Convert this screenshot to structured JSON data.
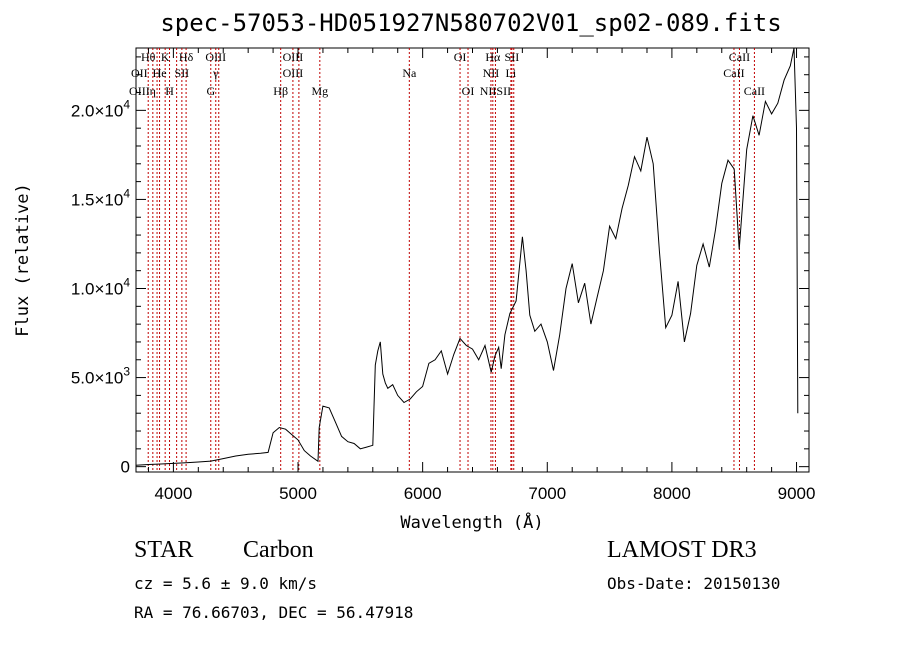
{
  "chart_data": {
    "type": "line",
    "title": "spec-57053-HD051927N580702V01_sp02-089.fits",
    "xlabel": "Wavelength (Å)",
    "ylabel": "Flux (relative)",
    "xlim": [
      3700,
      9100
    ],
    "ylim": [
      -300,
      23500
    ],
    "x_ticks": [
      4000,
      5000,
      6000,
      7000,
      8000,
      9000
    ],
    "x_tick_labels": [
      "4000",
      "5000",
      "6000",
      "7000",
      "8000",
      "9000"
    ],
    "y_ticks": [
      0,
      5000,
      10000,
      15000,
      20000
    ],
    "y_tick_labels": [
      {
        "mant": "0",
        "exp": ""
      },
      {
        "mant": "5.0×10",
        "exp": "3"
      },
      {
        "mant": "1.0×10",
        "exp": "4"
      },
      {
        "mant": "1.5×10",
        "exp": "4"
      },
      {
        "mant": "2.0×10",
        "exp": "4"
      }
    ],
    "spectrum": {
      "wavelength": [
        3700,
        3800,
        3900,
        4000,
        4100,
        4200,
        4300,
        4400,
        4500,
        4600,
        4700,
        4760,
        4800,
        4850,
        4900,
        4950,
        5000,
        5050,
        5100,
        5160,
        5170,
        5200,
        5250,
        5300,
        5350,
        5400,
        5450,
        5500,
        5550,
        5600,
        5620,
        5640,
        5660,
        5680,
        5700,
        5720,
        5760,
        5800,
        5850,
        5900,
        5950,
        6000,
        6050,
        6100,
        6150,
        6200,
        6250,
        6300,
        6350,
        6400,
        6450,
        6500,
        6550,
        6580,
        6610,
        6630,
        6660,
        6700,
        6750,
        6800,
        6830,
        6860,
        6900,
        6950,
        7000,
        7050,
        7100,
        7150,
        7200,
        7250,
        7300,
        7350,
        7400,
        7450,
        7500,
        7550,
        7600,
        7650,
        7700,
        7750,
        7800,
        7850,
        7880,
        7900,
        7950,
        8000,
        8050,
        8100,
        8150,
        8200,
        8250,
        8300,
        8350,
        8400,
        8450,
        8500,
        8540,
        8600,
        8650,
        8700,
        8750,
        8800,
        8850,
        8900,
        8950,
        8980,
        9000,
        9010
      ],
      "flux": [
        80,
        120,
        150,
        180,
        220,
        260,
        310,
        450,
        600,
        700,
        750,
        800,
        1900,
        2200,
        2100,
        1800,
        1500,
        900,
        600,
        300,
        2200,
        3400,
        3300,
        2500,
        1700,
        1400,
        1300,
        1000,
        1100,
        1200,
        5700,
        6500,
        7000,
        5200,
        4700,
        4400,
        4600,
        4000,
        3600,
        3800,
        4200,
        4500,
        5800,
        6000,
        6500,
        5200,
        6300,
        7200,
        6800,
        6600,
        6000,
        6800,
        5300,
        6200,
        6700,
        5500,
        7400,
        8600,
        9300,
        12900,
        11000,
        8500,
        7600,
        8000,
        7000,
        5400,
        7400,
        10000,
        11400,
        9200,
        10300,
        8000,
        9500,
        11000,
        13500,
        12800,
        14500,
        15800,
        17400,
        16600,
        18500,
        17000,
        14000,
        12100,
        7800,
        8500,
        10400,
        7000,
        8600,
        11300,
        12500,
        11200,
        13300,
        15900,
        17200,
        16700,
        12200,
        17800,
        19700,
        18600,
        20500,
        19800,
        20400,
        21700,
        22500,
        23500,
        19000,
        3000
      ]
    },
    "line_markers": [
      {
        "wl": 3798,
        "label": "Hθ",
        "row": 1
      },
      {
        "wl": 3835,
        "label": "",
        "row": 0
      },
      {
        "wl": 3869,
        "label": "",
        "row": 0
      },
      {
        "wl": 3889,
        "label": "He",
        "row": 2
      },
      {
        "wl": 3934,
        "label": "K",
        "row": 1
      },
      {
        "wl": 3969,
        "label": "H",
        "row": 3
      },
      {
        "wl": 4026,
        "label": "",
        "row": 0
      },
      {
        "wl": 4068,
        "label": "SII",
        "row": 2
      },
      {
        "wl": 4102,
        "label": "Hδ",
        "row": 1
      },
      {
        "wl": 4300,
        "label": "",
        "row": 0
      },
      {
        "wl": 4340,
        "label": "OIII",
        "row": 1
      },
      {
        "wl": 4364,
        "label": "",
        "row": 0
      },
      {
        "wl": 4861,
        "label": "Hβ",
        "row": 3
      },
      {
        "wl": 4959,
        "label": "OIII",
        "row": 1
      },
      {
        "wl": 5007,
        "label": "",
        "row": 0
      },
      {
        "wl": 5175,
        "label": "Mg",
        "row": 3
      },
      {
        "wl": 5893,
        "label": "Na",
        "row": 2
      },
      {
        "wl": 6300,
        "label": "OI",
        "row": 1
      },
      {
        "wl": 6364,
        "label": "OI",
        "row": 3
      },
      {
        "wl": 6548,
        "label": "",
        "row": 0
      },
      {
        "wl": 6563,
        "label": "Hα",
        "row": 1
      },
      {
        "wl": 6584,
        "label": "",
        "row": 0
      },
      {
        "wl": 6708,
        "label": "Li",
        "row": 2
      },
      {
        "wl": 6716,
        "label": "SII",
        "row": 1
      },
      {
        "wl": 6731,
        "label": "",
        "row": 0
      },
      {
        "wl": 8498,
        "label": "",
        "row": 0
      },
      {
        "wl": 8542,
        "label": "CaII",
        "row": 1
      },
      {
        "wl": 8662,
        "label": "CaII",
        "row": 3
      }
    ],
    "marker_text": [
      {
        "text": "OII",
        "wl": 3727,
        "row": 2
      },
      {
        "text": "OIII",
        "wl": 3727,
        "row": 3
      },
      {
        "text": "η",
        "wl": 3835,
        "row": 3
      },
      {
        "text": "I",
        "wl": 3889,
        "row": 2
      },
      {
        "text": "γ",
        "wl": 4340,
        "row": 2
      },
      {
        "text": "G",
        "wl": 4300,
        "row": 3
      },
      {
        "text": "OIII",
        "wl": 4959,
        "row": 2
      },
      {
        "text": "NII",
        "wl": 6548,
        "row": 2
      },
      {
        "text": "NIISII",
        "wl": 6584,
        "row": 3
      },
      {
        "text": "CaII",
        "wl": 8498,
        "row": 2
      }
    ]
  },
  "info": {
    "object_type": "STAR",
    "subclass": "Carbon",
    "survey": "LAMOST DR3",
    "cz_line": "cz = 5.6 ± 9.0 km/s",
    "obs_date_line": "Obs-Date: 20150130",
    "coords_line": "RA =  76.66703, DEC =  56.47918"
  }
}
